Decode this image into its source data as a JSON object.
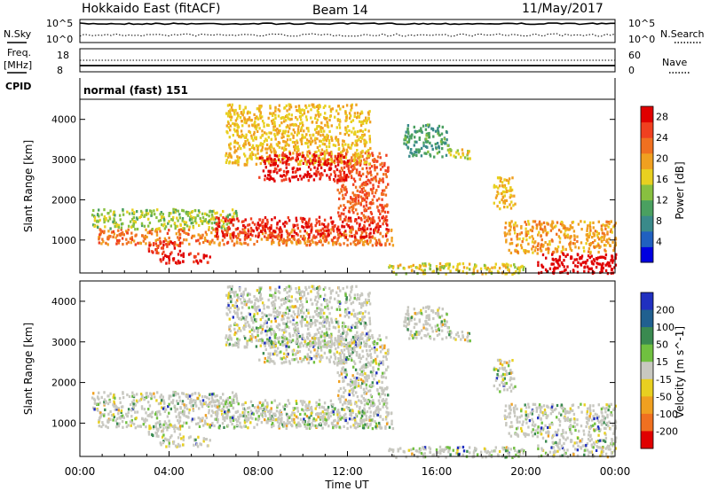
{
  "header": {
    "title": "Hokkaido East (fitACF)",
    "beam": "Beam 14",
    "date": "11/May/2017"
  },
  "summary_panels": {
    "nsky_label": "N.Sky",
    "nsearch_label": "N.Search",
    "nsky_ticks": [
      "10^5",
      "10^0"
    ],
    "nsearch_ticks": [
      "10^5",
      "10^0"
    ],
    "freq_label_line1": "Freq.",
    "freq_label_line2": "[MHz]",
    "freq_ticks": [
      "18",
      "8"
    ],
    "nave_label": "Nave",
    "nave_ticks": [
      "60",
      "0"
    ],
    "cpid_label": "CPID",
    "cpid_text": "normal (fast) 151"
  },
  "chart_data": [
    {
      "type": "heatmap",
      "title": "",
      "xlabel": "Time UT",
      "ylabel": "Slant Range [km]",
      "x_ticks": [
        "00:00",
        "04:00",
        "08:00",
        "12:00",
        "16:00",
        "20:00",
        "00:00"
      ],
      "x_range_hours": [
        0,
        24
      ],
      "ylim": [
        180,
        4500
      ],
      "y_ticks": [
        1000,
        2000,
        3000,
        4000
      ],
      "colorbar": {
        "label": "Power [dB]",
        "ticks": [
          4,
          8,
          12,
          16,
          20,
          24,
          28
        ],
        "range": [
          0,
          30
        ],
        "colors": [
          "#0000e0",
          "#2060c0",
          "#3a8a8a",
          "#4aa060",
          "#88c040",
          "#e8d020",
          "#f0a020",
          "#f07020",
          "#f04020",
          "#e00000"
        ]
      },
      "echo_regions": [
        {
          "t": [
            0.8,
            14.0
          ],
          "r": [
            900,
            1300
          ],
          "level": 22
        },
        {
          "t": [
            0.5,
            7.0
          ],
          "r": [
            1300,
            1800
          ],
          "level": 14
        },
        {
          "t": [
            6.0,
            13.8
          ],
          "r": [
            1100,
            1600
          ],
          "level": 27
        },
        {
          "t": [
            11.5,
            13.8
          ],
          "r": [
            1500,
            3200
          ],
          "level": 24
        },
        {
          "t": [
            6.5,
            13.0
          ],
          "r": [
            2900,
            4400
          ],
          "level": 18
        },
        {
          "t": [
            8.0,
            12.0
          ],
          "r": [
            2500,
            3200
          ],
          "level": 28
        },
        {
          "t": [
            3.5,
            5.8
          ],
          "r": [
            450,
            700
          ],
          "level": 28
        },
        {
          "t": [
            3.0,
            4.5
          ],
          "r": [
            700,
            1000
          ],
          "level": 26
        },
        {
          "t": [
            18.5,
            19.5
          ],
          "r": [
            1800,
            2600
          ],
          "level": 18
        },
        {
          "t": [
            19.0,
            24.0
          ],
          "r": [
            700,
            1500
          ],
          "level": 20
        },
        {
          "t": [
            20.5,
            24.0
          ],
          "r": [
            200,
            700
          ],
          "level": 30
        },
        {
          "t": [
            14.5,
            16.5
          ],
          "r": [
            3100,
            3900
          ],
          "level": 10
        },
        {
          "t": [
            16.5,
            17.5
          ],
          "r": [
            3000,
            3300
          ],
          "level": 16
        },
        {
          "t": [
            13.8,
            20.0
          ],
          "r": [
            180,
            450
          ],
          "level": 16
        }
      ]
    },
    {
      "type": "heatmap",
      "title": "",
      "xlabel": "Time UT",
      "ylabel": "Slant Range [km]",
      "x_ticks": [
        "00:00",
        "04:00",
        "08:00",
        "12:00",
        "16:00",
        "20:00",
        "00:00"
      ],
      "x_range_hours": [
        0,
        24
      ],
      "ylim": [
        180,
        4500
      ],
      "y_ticks": [
        1000,
        2000,
        3000,
        4000
      ],
      "colorbar": {
        "label": "Velocity [m s^-1]",
        "ticks": [
          200,
          100,
          50,
          15,
          -15,
          -50,
          -100,
          -200
        ],
        "colors": [
          "#2030c0",
          "#206090",
          "#3a8a50",
          "#70c040",
          "#c8c8c0",
          "#e8d020",
          "#f0a020",
          "#f07020",
          "#e00000"
        ]
      },
      "ground_scatter_color": "#c8c8c0"
    }
  ]
}
